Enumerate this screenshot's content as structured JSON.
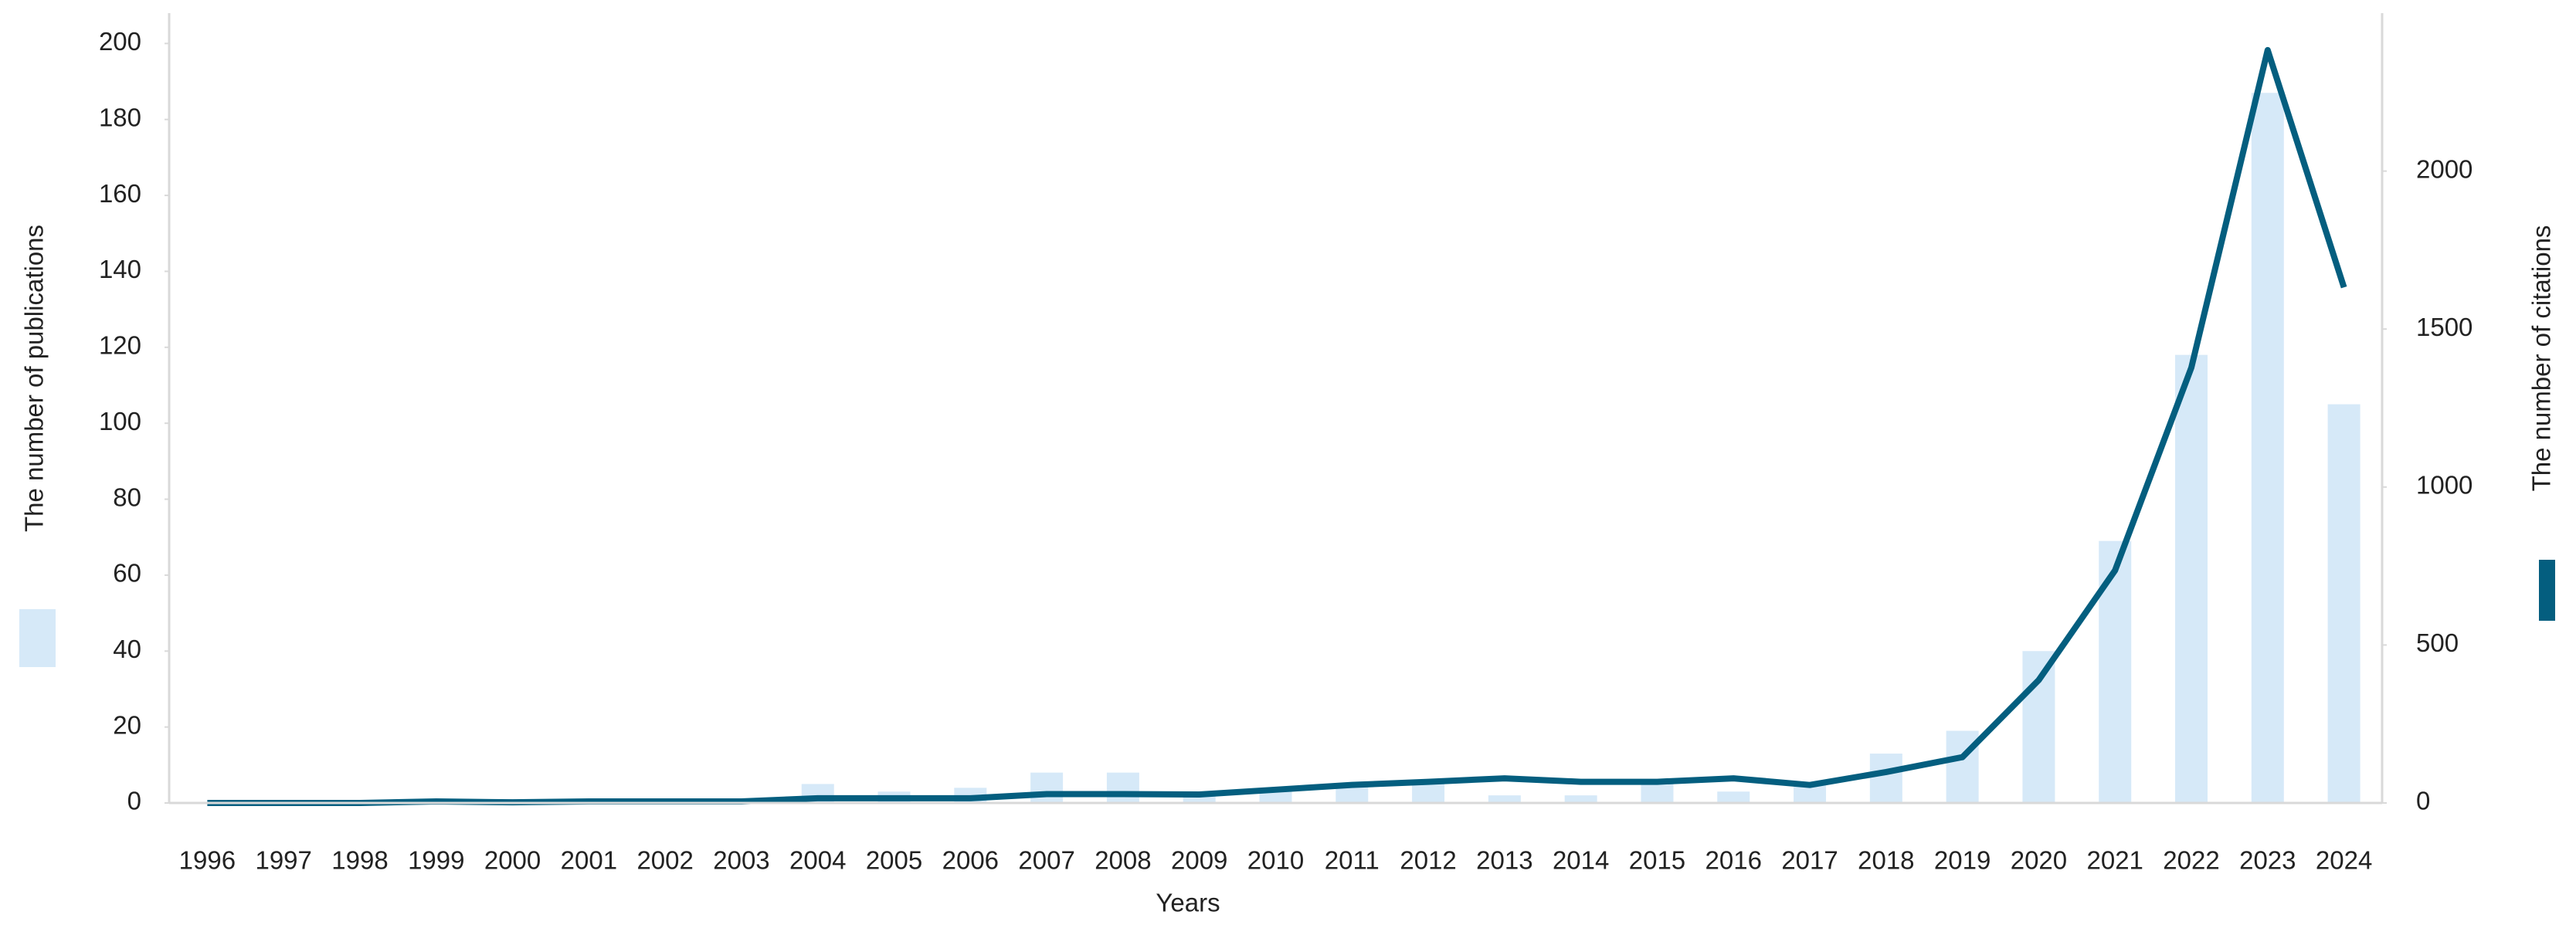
{
  "chart_data": {
    "type": "bar-line",
    "x_label": "Years",
    "categories": [
      "1996",
      "1997",
      "1998",
      "1999",
      "2000",
      "2001",
      "2002",
      "2003",
      "2004",
      "2005",
      "2006",
      "2007",
      "2008",
      "2009",
      "2010",
      "2011",
      "2012",
      "2013",
      "2014",
      "2015",
      "2016",
      "2017",
      "2018",
      "2019",
      "2020",
      "2021",
      "2022",
      "2023",
      "2024"
    ],
    "series": [
      {
        "name": "The number of publications",
        "type": "bar",
        "color": "#d6e9f8",
        "values": [
          0,
          0,
          0,
          1,
          1,
          1,
          1,
          1,
          5,
          3,
          4,
          8,
          8,
          2,
          4,
          5,
          6,
          2,
          2,
          6,
          3,
          5,
          13,
          19,
          40,
          69,
          118,
          187,
          105
        ]
      },
      {
        "name": "The number of citations",
        "type": "line",
        "axis": "y2",
        "color": "#045e7f",
        "values": [
          0,
          0,
          0,
          5,
          2,
          5,
          5,
          5,
          15,
          15,
          15,
          28,
          28,
          27,
          42,
          57,
          67,
          78,
          67,
          67,
          78,
          57,
          98,
          145,
          389,
          736,
          1378,
          2383,
          1632
        ]
      }
    ],
    "ylim": [
      0,
      208
    ],
    "yticks": [
      0,
      20,
      40,
      60,
      80,
      100,
      120,
      140,
      160,
      180,
      200
    ],
    "y2lim": [
      0,
      2500
    ],
    "y2ticks": [
      0,
      500,
      1000,
      1500,
      2000
    ]
  }
}
